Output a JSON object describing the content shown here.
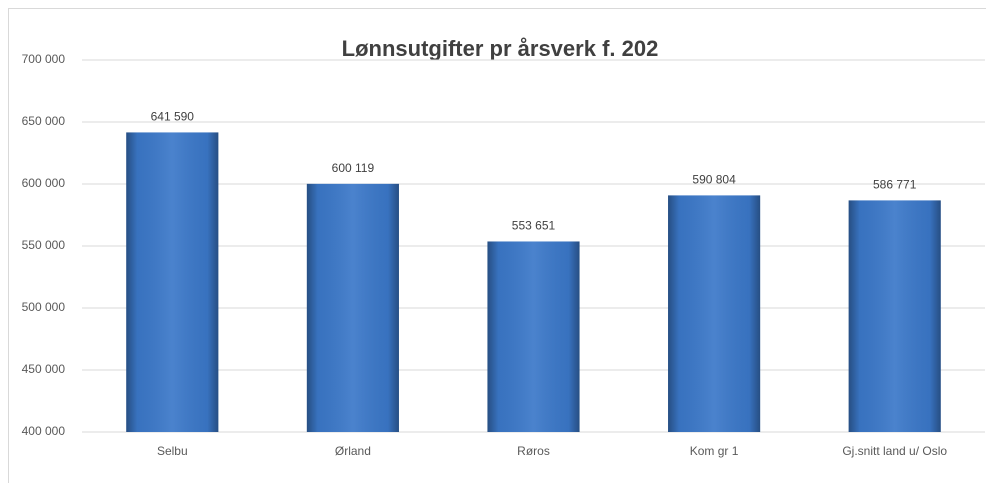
{
  "chart_data": {
    "type": "bar",
    "title": "Lønnsutgifter pr årsverk f. 202",
    "categories": [
      "Selbu",
      "Ørland",
      "Røros",
      "Kom gr 1",
      "Gj.snitt land u/ Oslo"
    ],
    "values": [
      641590,
      600119,
      553651,
      590804,
      586771
    ],
    "value_labels": [
      "641 590",
      "600 119",
      "553 651",
      "590 804",
      "586 771"
    ],
    "color": "#3b78c9",
    "ylim": [
      400000,
      700000
    ],
    "yticks": [
      {
        "value": 400000,
        "label": "400 000"
      },
      {
        "value": 450000,
        "label": "450 000"
      },
      {
        "value": 500000,
        "label": "500 000"
      },
      {
        "value": 550000,
        "label": "550 000"
      },
      {
        "value": 600000,
        "label": "600 000"
      },
      {
        "value": 650000,
        "label": "650 000"
      },
      {
        "value": 700000,
        "label": "700 000"
      }
    ],
    "grid": true
  }
}
